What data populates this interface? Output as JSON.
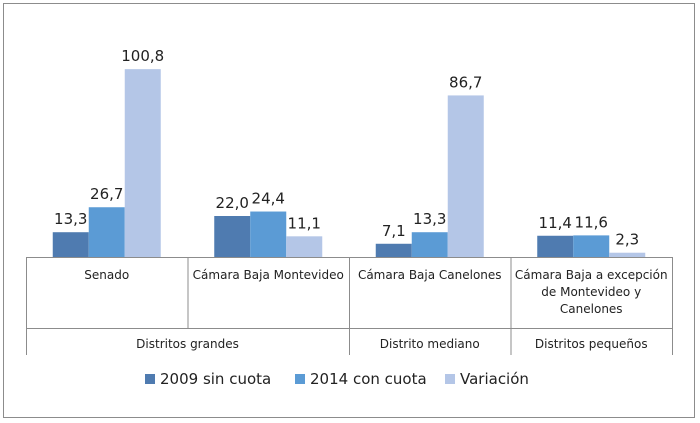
{
  "chart_data": {
    "type": "bar",
    "categories": [
      "Senado",
      "Cámara Baja Montevideo",
      "Cámara Baja Canelones",
      "Cámara Baja a excepción de Montevideo y Canelones"
    ],
    "category_lines": [
      [
        "Senado"
      ],
      [
        "Cámara Baja Montevideo"
      ],
      [
        "Cámara Baja Canelones"
      ],
      [
        "Cámara Baja a excepción",
        "de Montevideo y",
        "Canelones"
      ]
    ],
    "groups": [
      {
        "label": "Distritos grandes",
        "categories": [
          0,
          1
        ]
      },
      {
        "label": "Distrito mediano",
        "categories": [
          2
        ]
      },
      {
        "label": "Distritos pequeños",
        "categories": [
          3
        ]
      }
    ],
    "series": [
      {
        "name": "2009 sin cuota",
        "values": [
          13.3,
          22.0,
          7.1,
          11.4
        ],
        "labels": [
          "13,3",
          "22,0",
          "7,1",
          "11,4"
        ],
        "color": "#4f7bb0"
      },
      {
        "name": "2014 con cuota",
        "values": [
          26.7,
          24.4,
          13.3,
          11.6
        ],
        "labels": [
          "26,7",
          "24,4",
          "13,3",
          "11,6"
        ],
        "color": "#5b9bd5"
      },
      {
        "name": "Variación",
        "values": [
          100.8,
          11.1,
          86.7,
          2.3
        ],
        "labels": [
          "100,8",
          "11,1",
          "86,7",
          "2,3"
        ],
        "color": "#b4c6e7"
      }
    ],
    "ylim": [
      0,
      110
    ],
    "grid": false,
    "legend_position": "bottom"
  }
}
